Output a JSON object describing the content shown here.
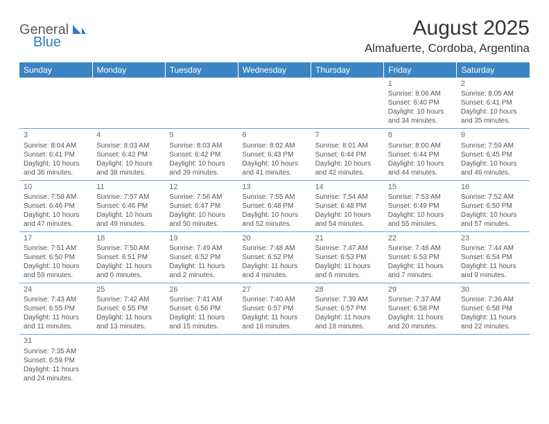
{
  "logo": {
    "text1": "General",
    "text2": "Blue"
  },
  "title": "August 2025",
  "location": "Almafuerte, Cordoba, Argentina",
  "colors": {
    "header_bg": "#3b84c4",
    "header_text": "#ffffff",
    "grid_border": "#6a9fcf",
    "body_text": "#555555",
    "logo_gray": "#5a5a5a",
    "logo_blue": "#2f78c2"
  },
  "weekdays": [
    "Sunday",
    "Monday",
    "Tuesday",
    "Wednesday",
    "Thursday",
    "Friday",
    "Saturday"
  ],
  "weeks": [
    [
      null,
      null,
      null,
      null,
      null,
      {
        "day": "1",
        "sunrise": "Sunrise: 8:06 AM",
        "sunset": "Sunset: 6:40 PM",
        "daylight1": "Daylight: 10 hours",
        "daylight2": "and 34 minutes."
      },
      {
        "day": "2",
        "sunrise": "Sunrise: 8:05 AM",
        "sunset": "Sunset: 6:41 PM",
        "daylight1": "Daylight: 10 hours",
        "daylight2": "and 35 minutes."
      }
    ],
    [
      {
        "day": "3",
        "sunrise": "Sunrise: 8:04 AM",
        "sunset": "Sunset: 6:41 PM",
        "daylight1": "Daylight: 10 hours",
        "daylight2": "and 36 minutes."
      },
      {
        "day": "4",
        "sunrise": "Sunrise: 8:03 AM",
        "sunset": "Sunset: 6:42 PM",
        "daylight1": "Daylight: 10 hours",
        "daylight2": "and 38 minutes."
      },
      {
        "day": "5",
        "sunrise": "Sunrise: 8:03 AM",
        "sunset": "Sunset: 6:42 PM",
        "daylight1": "Daylight: 10 hours",
        "daylight2": "and 39 minutes."
      },
      {
        "day": "6",
        "sunrise": "Sunrise: 8:02 AM",
        "sunset": "Sunset: 6:43 PM",
        "daylight1": "Daylight: 10 hours",
        "daylight2": "and 41 minutes."
      },
      {
        "day": "7",
        "sunrise": "Sunrise: 8:01 AM",
        "sunset": "Sunset: 6:44 PM",
        "daylight1": "Daylight: 10 hours",
        "daylight2": "and 42 minutes."
      },
      {
        "day": "8",
        "sunrise": "Sunrise: 8:00 AM",
        "sunset": "Sunset: 6:44 PM",
        "daylight1": "Daylight: 10 hours",
        "daylight2": "and 44 minutes."
      },
      {
        "day": "9",
        "sunrise": "Sunrise: 7:59 AM",
        "sunset": "Sunset: 6:45 PM",
        "daylight1": "Daylight: 10 hours",
        "daylight2": "and 46 minutes."
      }
    ],
    [
      {
        "day": "10",
        "sunrise": "Sunrise: 7:58 AM",
        "sunset": "Sunset: 6:46 PM",
        "daylight1": "Daylight: 10 hours",
        "daylight2": "and 47 minutes."
      },
      {
        "day": "11",
        "sunrise": "Sunrise: 7:57 AM",
        "sunset": "Sunset: 6:46 PM",
        "daylight1": "Daylight: 10 hours",
        "daylight2": "and 49 minutes."
      },
      {
        "day": "12",
        "sunrise": "Sunrise: 7:56 AM",
        "sunset": "Sunset: 6:47 PM",
        "daylight1": "Daylight: 10 hours",
        "daylight2": "and 50 minutes."
      },
      {
        "day": "13",
        "sunrise": "Sunrise: 7:55 AM",
        "sunset": "Sunset: 6:48 PM",
        "daylight1": "Daylight: 10 hours",
        "daylight2": "and 52 minutes."
      },
      {
        "day": "14",
        "sunrise": "Sunrise: 7:54 AM",
        "sunset": "Sunset: 6:48 PM",
        "daylight1": "Daylight: 10 hours",
        "daylight2": "and 54 minutes."
      },
      {
        "day": "15",
        "sunrise": "Sunrise: 7:53 AM",
        "sunset": "Sunset: 6:49 PM",
        "daylight1": "Daylight: 10 hours",
        "daylight2": "and 55 minutes."
      },
      {
        "day": "16",
        "sunrise": "Sunrise: 7:52 AM",
        "sunset": "Sunset: 6:50 PM",
        "daylight1": "Daylight: 10 hours",
        "daylight2": "and 57 minutes."
      }
    ],
    [
      {
        "day": "17",
        "sunrise": "Sunrise: 7:51 AM",
        "sunset": "Sunset: 6:50 PM",
        "daylight1": "Daylight: 10 hours",
        "daylight2": "and 59 minutes."
      },
      {
        "day": "18",
        "sunrise": "Sunrise: 7:50 AM",
        "sunset": "Sunset: 6:51 PM",
        "daylight1": "Daylight: 11 hours",
        "daylight2": "and 0 minutes."
      },
      {
        "day": "19",
        "sunrise": "Sunrise: 7:49 AM",
        "sunset": "Sunset: 6:52 PM",
        "daylight1": "Daylight: 11 hours",
        "daylight2": "and 2 minutes."
      },
      {
        "day": "20",
        "sunrise": "Sunrise: 7:48 AM",
        "sunset": "Sunset: 6:52 PM",
        "daylight1": "Daylight: 11 hours",
        "daylight2": "and 4 minutes."
      },
      {
        "day": "21",
        "sunrise": "Sunrise: 7:47 AM",
        "sunset": "Sunset: 6:53 PM",
        "daylight1": "Daylight: 11 hours",
        "daylight2": "and 6 minutes."
      },
      {
        "day": "22",
        "sunrise": "Sunrise: 7:46 AM",
        "sunset": "Sunset: 6:53 PM",
        "daylight1": "Daylight: 11 hours",
        "daylight2": "and 7 minutes."
      },
      {
        "day": "23",
        "sunrise": "Sunrise: 7:44 AM",
        "sunset": "Sunset: 6:54 PM",
        "daylight1": "Daylight: 11 hours",
        "daylight2": "and 9 minutes."
      }
    ],
    [
      {
        "day": "24",
        "sunrise": "Sunrise: 7:43 AM",
        "sunset": "Sunset: 6:55 PM",
        "daylight1": "Daylight: 11 hours",
        "daylight2": "and 11 minutes."
      },
      {
        "day": "25",
        "sunrise": "Sunrise: 7:42 AM",
        "sunset": "Sunset: 6:55 PM",
        "daylight1": "Daylight: 11 hours",
        "daylight2": "and 13 minutes."
      },
      {
        "day": "26",
        "sunrise": "Sunrise: 7:41 AM",
        "sunset": "Sunset: 6:56 PM",
        "daylight1": "Daylight: 11 hours",
        "daylight2": "and 15 minutes."
      },
      {
        "day": "27",
        "sunrise": "Sunrise: 7:40 AM",
        "sunset": "Sunset: 6:57 PM",
        "daylight1": "Daylight: 11 hours",
        "daylight2": "and 16 minutes."
      },
      {
        "day": "28",
        "sunrise": "Sunrise: 7:39 AM",
        "sunset": "Sunset: 6:57 PM",
        "daylight1": "Daylight: 11 hours",
        "daylight2": "and 18 minutes."
      },
      {
        "day": "29",
        "sunrise": "Sunrise: 7:37 AM",
        "sunset": "Sunset: 6:58 PM",
        "daylight1": "Daylight: 11 hours",
        "daylight2": "and 20 minutes."
      },
      {
        "day": "30",
        "sunrise": "Sunrise: 7:36 AM",
        "sunset": "Sunset: 6:58 PM",
        "daylight1": "Daylight: 11 hours",
        "daylight2": "and 22 minutes."
      }
    ],
    [
      {
        "day": "31",
        "sunrise": "Sunrise: 7:35 AM",
        "sunset": "Sunset: 6:59 PM",
        "daylight1": "Daylight: 11 hours",
        "daylight2": "and 24 minutes."
      },
      null,
      null,
      null,
      null,
      null,
      null
    ]
  ]
}
